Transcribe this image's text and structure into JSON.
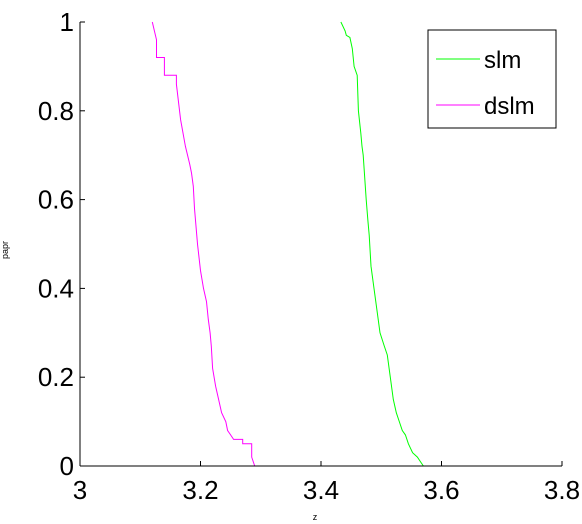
{
  "chart_data": {
    "type": "line",
    "title": "",
    "xlabel": "z",
    "ylabel": "papr",
    "xlim": [
      3,
      3.8
    ],
    "ylim": [
      0,
      1
    ],
    "x_ticks": [
      3,
      3.2,
      3.4,
      3.6,
      3.8
    ],
    "x_tick_labels": [
      "3",
      "3.2",
      "3.4",
      "3.6",
      "3.8"
    ],
    "y_ticks": [
      0,
      0.2,
      0.4,
      0.6,
      0.8,
      1
    ],
    "y_tick_labels": [
      "0",
      "0.2",
      "0.4",
      "0.6",
      "0.8",
      "1"
    ],
    "grid": false,
    "legend_position": "top-right",
    "series": [
      {
        "name": "slm",
        "color": "#00ff00",
        "x": [
          3.433,
          3.44,
          3.442,
          3.448,
          3.452,
          3.455,
          3.46,
          3.462,
          3.466,
          3.468,
          3.47,
          3.475,
          3.478,
          3.48,
          3.483,
          3.488,
          3.493,
          3.498,
          3.505,
          3.51,
          3.515,
          3.52,
          3.525,
          3.53,
          3.535,
          3.54,
          3.545,
          3.552,
          3.56,
          3.565,
          3.57,
          3.597
        ],
        "y": [
          1.0,
          0.98,
          0.97,
          0.965,
          0.94,
          0.9,
          0.88,
          0.8,
          0.75,
          0.72,
          0.7,
          0.6,
          0.55,
          0.52,
          0.45,
          0.4,
          0.35,
          0.3,
          0.27,
          0.25,
          0.2,
          0.15,
          0.12,
          0.1,
          0.08,
          0.07,
          0.05,
          0.03,
          0.02,
          0.01,
          0.0,
          0.0
        ]
      },
      {
        "name": "dslm",
        "color": "#ff00ff",
        "x": [
          3.12,
          3.127,
          3.127,
          3.14,
          3.14,
          3.16,
          3.16,
          3.167,
          3.175,
          3.182,
          3.185,
          3.188,
          3.19,
          3.195,
          3.2,
          3.205,
          3.21,
          3.213,
          3.216,
          3.218,
          3.22,
          3.225,
          3.23,
          3.235,
          3.242,
          3.245,
          3.25,
          3.255,
          3.27,
          3.27,
          3.285,
          3.285,
          3.29
        ],
        "y": [
          1.0,
          0.96,
          0.92,
          0.92,
          0.88,
          0.88,
          0.86,
          0.78,
          0.72,
          0.68,
          0.66,
          0.63,
          0.58,
          0.5,
          0.44,
          0.4,
          0.37,
          0.33,
          0.3,
          0.27,
          0.22,
          0.18,
          0.15,
          0.12,
          0.1,
          0.08,
          0.07,
          0.06,
          0.06,
          0.05,
          0.05,
          0.02,
          0.0
        ]
      }
    ]
  }
}
